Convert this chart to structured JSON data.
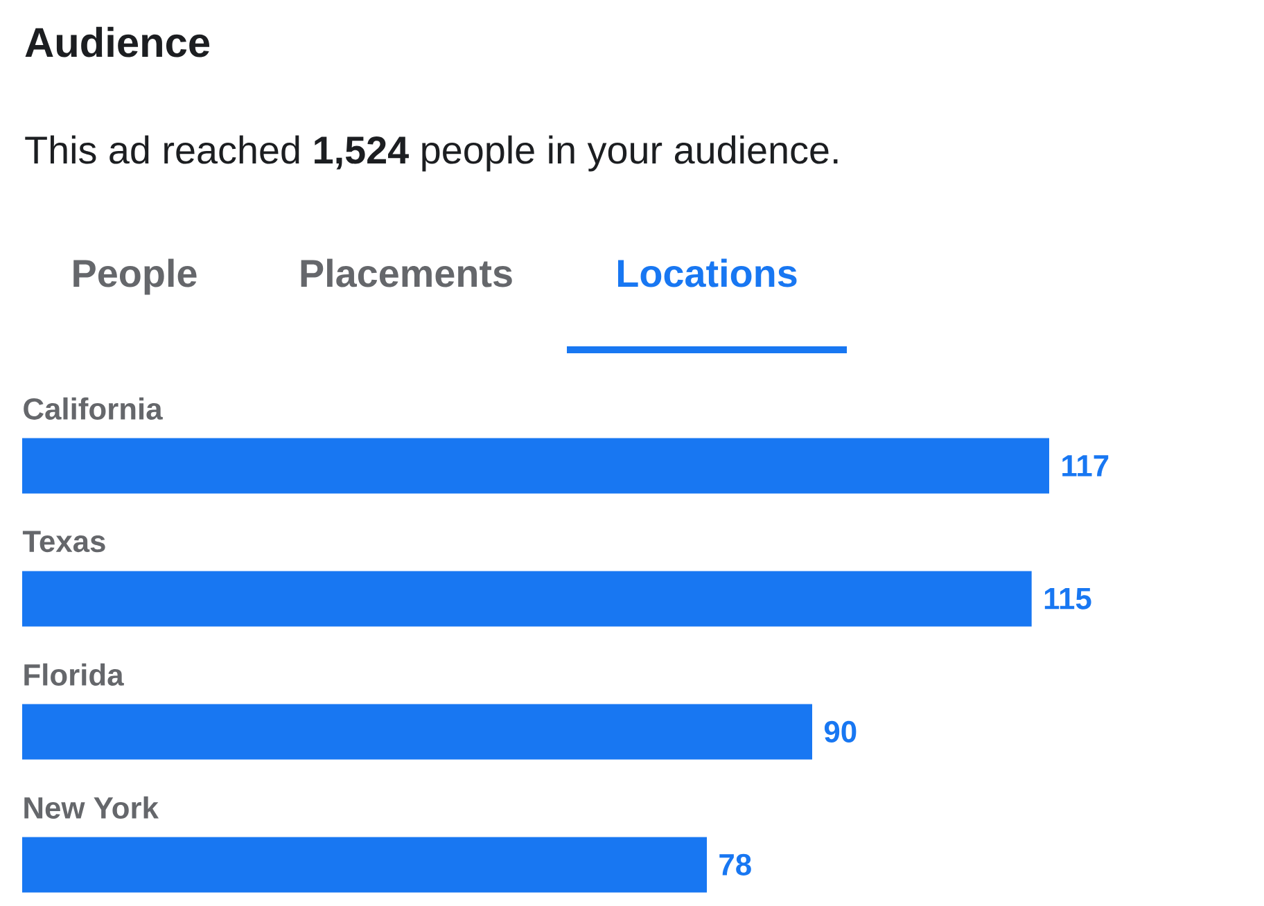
{
  "chart_data": {
    "type": "bar",
    "orientation": "horizontal",
    "title": "Audience",
    "subtitle": "This ad reached **1,524** people in your audience.",
    "annotations": [
      "People",
      "Placements",
      "Locations"
    ],
    "categories": [
      "California",
      "Texas",
      "Florida",
      "New York"
    ],
    "values": [
      117,
      115,
      90,
      78
    ],
    "color": "#1877f2",
    "data_labels": true
  }
}
